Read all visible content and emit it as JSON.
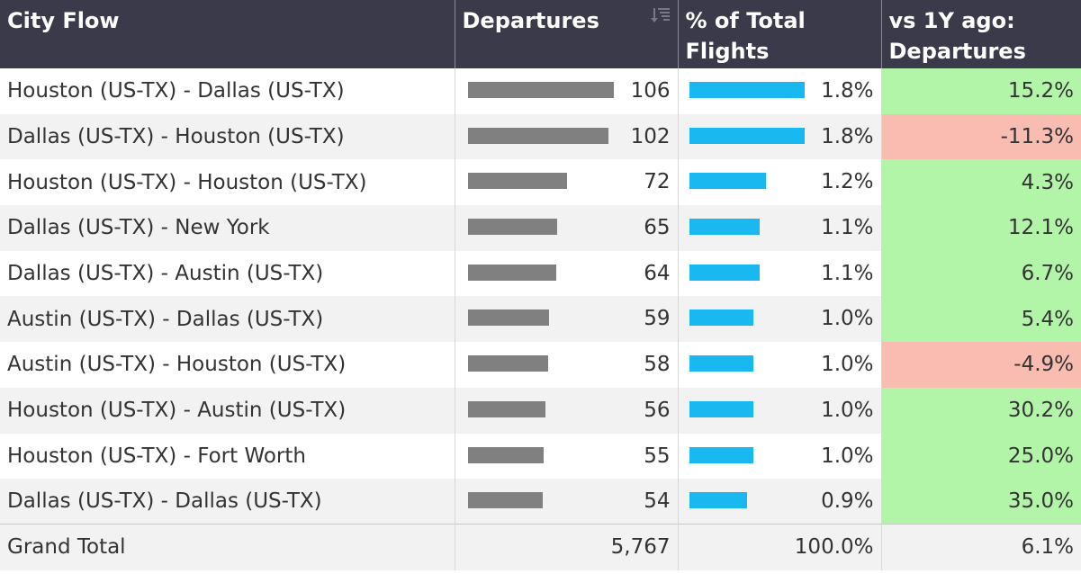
{
  "header": {
    "col1": "City Flow",
    "col2": "Departures",
    "col3a": "% of Total",
    "col3b": "Flights",
    "col4a": "vs 1Y ago:",
    "col4b": "Departures"
  },
  "chart_data": {
    "type": "table",
    "columns": [
      "City Flow",
      "Departures",
      "% of Total Flights",
      "vs 1Y ago: Departures"
    ],
    "rows": [
      {
        "flow": "Houston (US-TX) - Dallas (US-TX)",
        "departures": 106,
        "departures_label": "106",
        "pct": 1.8,
        "pct_label": "1.8%",
        "yoy": 15.2,
        "yoy_label": "15.2%"
      },
      {
        "flow": "Dallas (US-TX) - Houston (US-TX)",
        "departures": 102,
        "departures_label": "102",
        "pct": 1.8,
        "pct_label": "1.8%",
        "yoy": -11.3,
        "yoy_label": "-11.3%"
      },
      {
        "flow": "Houston (US-TX) - Houston (US-TX)",
        "departures": 72,
        "departures_label": "72",
        "pct": 1.2,
        "pct_label": "1.2%",
        "yoy": 4.3,
        "yoy_label": "4.3%"
      },
      {
        "flow": "Dallas (US-TX) - New York",
        "departures": 65,
        "departures_label": "65",
        "pct": 1.1,
        "pct_label": "1.1%",
        "yoy": 12.1,
        "yoy_label": "12.1%"
      },
      {
        "flow": "Dallas (US-TX) - Austin (US-TX)",
        "departures": 64,
        "departures_label": "64",
        "pct": 1.1,
        "pct_label": "1.1%",
        "yoy": 6.7,
        "yoy_label": "6.7%"
      },
      {
        "flow": "Austin (US-TX) - Dallas (US-TX)",
        "departures": 59,
        "departures_label": "59",
        "pct": 1.0,
        "pct_label": "1.0%",
        "yoy": 5.4,
        "yoy_label": "5.4%"
      },
      {
        "flow": "Austin (US-TX) - Houston (US-TX)",
        "departures": 58,
        "departures_label": "58",
        "pct": 1.0,
        "pct_label": "1.0%",
        "yoy": -4.9,
        "yoy_label": "-4.9%"
      },
      {
        "flow": "Houston (US-TX) - Austin (US-TX)",
        "departures": 56,
        "departures_label": "56",
        "pct": 1.0,
        "pct_label": "1.0%",
        "yoy": 30.2,
        "yoy_label": "30.2%"
      },
      {
        "flow": "Houston (US-TX) - Fort Worth",
        "departures": 55,
        "departures_label": "55",
        "pct": 1.0,
        "pct_label": "1.0%",
        "yoy": 25.0,
        "yoy_label": "25.0%"
      },
      {
        "flow": "Dallas (US-TX) - Dallas (US-TX)",
        "departures": 54,
        "departures_label": "54",
        "pct": 0.9,
        "pct_label": "0.9%",
        "yoy": 35.0,
        "yoy_label": "35.0%"
      }
    ],
    "total": {
      "label": "Grand Total",
      "departures": "5,767",
      "pct": "100.0%",
      "yoy": "6.1%"
    }
  },
  "colors": {
    "header_bg": "#3b3a4a",
    "departures_bar": "#808080",
    "pct_bar": "#1ab8f0",
    "positive": "#b2f5a9",
    "negative": "#f8bcb0"
  },
  "icons": {
    "sort": "sort-descending-icon"
  }
}
